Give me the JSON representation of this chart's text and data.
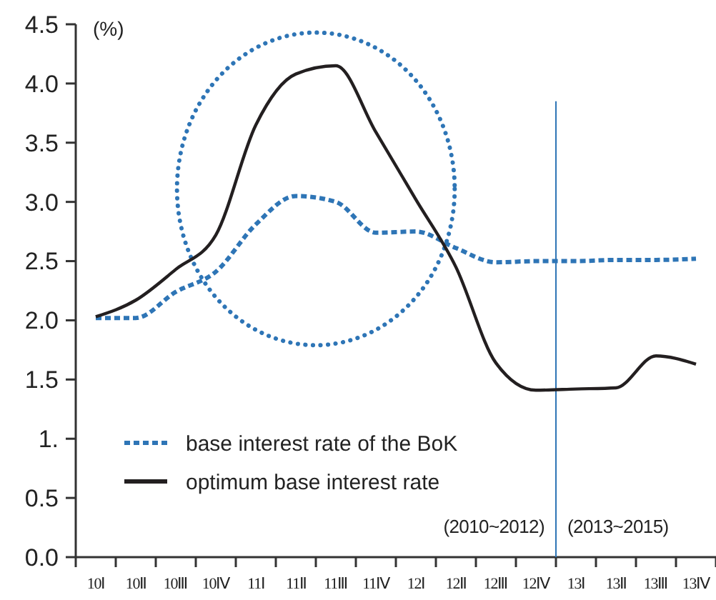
{
  "chart_data": {
    "type": "line",
    "ylabel": "(%)",
    "categories": [
      "10Ⅰ",
      "10Ⅱ",
      "10Ⅲ",
      "10Ⅳ",
      "11Ⅰ",
      "11Ⅱ",
      "11Ⅲ",
      "11Ⅳ",
      "12Ⅰ",
      "12Ⅱ",
      "12Ⅲ",
      "12Ⅳ",
      "13Ⅰ",
      "13Ⅱ",
      "13Ⅲ",
      "13Ⅳ"
    ],
    "series": [
      {
        "name": "base interest rate of the BoK",
        "color": "#2e75b6",
        "line_style": "dashed",
        "values": [
          2.02,
          2.02,
          2.24,
          2.41,
          2.81,
          3.05,
          3.0,
          2.74,
          2.75,
          2.61,
          2.49,
          2.5,
          2.5,
          2.51,
          2.51,
          2.52
        ]
      },
      {
        "name": "optimum base interest rate",
        "color": "#231f20",
        "line_style": "solid",
        "values": [
          2.03,
          2.17,
          2.43,
          2.72,
          3.65,
          4.08,
          4.15,
          3.59,
          3.02,
          2.45,
          1.64,
          1.41,
          1.42,
          1.43,
          1.7,
          1.63
        ]
      }
    ],
    "ylim": [
      0,
      4.5
    ],
    "yticks": [
      {
        "value": 0,
        "label": "0.0"
      },
      0.5,
      {
        "value": 1,
        "label": "1."
      },
      1.5,
      {
        "value": 2,
        "label": "2.0"
      },
      2.5,
      {
        "value": 3,
        "label": "3.0"
      },
      3.5,
      {
        "value": 4,
        "label": "4.0"
      },
      4.5
    ],
    "ref_lines": [
      {
        "axis": "x",
        "value": "13Ⅰ",
        "color": "#2e75b6"
      }
    ],
    "annotations": [
      "(2010~2012)",
      "(2013~2015)"
    ],
    "legend": "bottom left",
    "grid": false,
    "marker": "none"
  }
}
